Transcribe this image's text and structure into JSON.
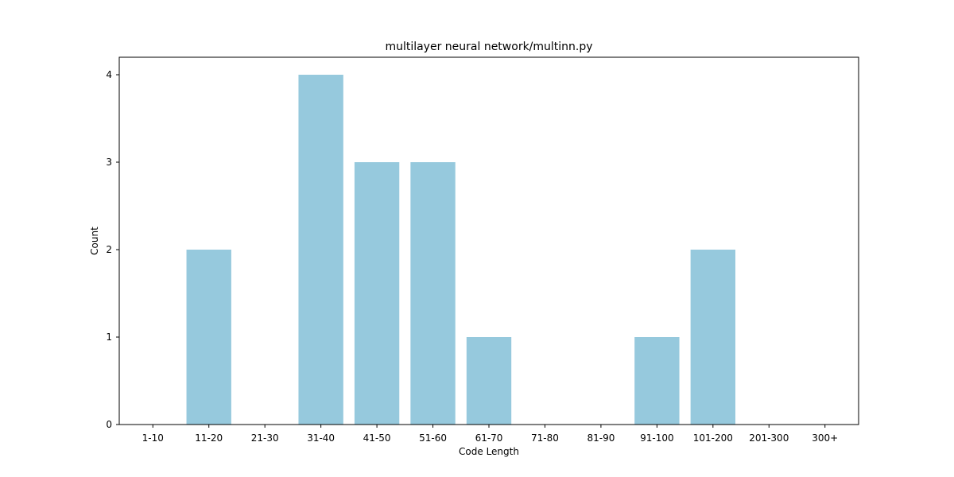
{
  "chart_data": {
    "type": "bar",
    "title": "multilayer neural network/multinn.py",
    "xlabel": "Code Length",
    "ylabel": "Count",
    "categories": [
      "1-10",
      "11-20",
      "21-30",
      "31-40",
      "41-50",
      "51-60",
      "61-70",
      "71-80",
      "81-90",
      "91-100",
      "101-200",
      "201-300",
      "300+"
    ],
    "values": [
      0,
      2,
      0,
      4,
      3,
      3,
      1,
      0,
      0,
      1,
      2,
      0,
      0
    ],
    "ylim": [
      0,
      4.2
    ],
    "yticks": [
      0,
      1,
      2,
      3,
      4
    ],
    "bar_color": "#96c9dd",
    "grid": false,
    "legend": "none"
  }
}
